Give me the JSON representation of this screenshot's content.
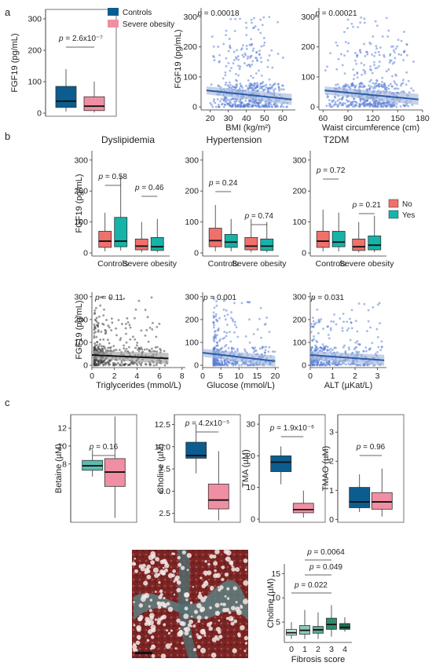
{
  "panel_labels": [
    "a",
    "b",
    "c"
  ],
  "colors": {
    "controls": "#0c5d8f",
    "severe_obesity": "#f08fa3",
    "no": "#f0706b",
    "yes": "#15b3a8",
    "scatter_blue": "#5b7fd6",
    "fit_blue": "#2c5aa8",
    "tg_points": "#444444",
    "betaine_c": "#5cbcb2",
    "fibrosis": [
      "#bfe4dc",
      "#8dc7b8",
      "#5ea895",
      "#2f8a6f",
      "#1f6a52"
    ]
  },
  "chart_data": [
    {
      "id": "a_box",
      "type": "box",
      "ylabel": "FGF19 (pg/mL)",
      "yticks": [
        0,
        100,
        200,
        300
      ],
      "ylim": [
        -10,
        330
      ],
      "legend": [
        "Controls",
        "Severe obesity"
      ],
      "series": [
        {
          "name": "Controls",
          "q1": 18,
          "median": 38,
          "q3": 85,
          "min": 5,
          "max": 140
        },
        {
          "name": "Severe obesity",
          "q1": 8,
          "median": 22,
          "q3": 52,
          "min": 2,
          "max": 100
        }
      ],
      "annotation": "p = 2.6x10⁻⁷"
    },
    {
      "id": "a_bmi",
      "type": "scatter",
      "xlabel": "BMI (kg/m²)",
      "ylabel": "FGF19 (pg/mL)",
      "xticks": [
        20,
        30,
        40,
        50,
        60
      ],
      "yticks": [
        0,
        100,
        200,
        300
      ],
      "xlim": [
        15,
        67
      ],
      "ylim": [
        -10,
        330
      ],
      "fit": {
        "x0": 18,
        "y0": 55,
        "x1": 65,
        "y1": 25
      },
      "annotation": "p = 0.00018"
    },
    {
      "id": "a_waist",
      "type": "scatter",
      "xlabel": "Waist circumference (cm)",
      "xticks": [
        60,
        90,
        120,
        150,
        180
      ],
      "yticks": [
        0,
        100,
        200,
        300
      ],
      "xlim": [
        55,
        180
      ],
      "ylim": [
        -10,
        330
      ],
      "fit": {
        "x0": 62,
        "y0": 55,
        "x1": 175,
        "y1": 25
      },
      "annotation": "p = 0.00021"
    },
    {
      "id": "b_dys",
      "type": "grouped_box",
      "title": "Dyslipidemia",
      "ylabel": "FGF19 (pg/mL)",
      "categories": [
        "Controls",
        "Severe obesity"
      ],
      "yticks": [
        0,
        100,
        200,
        300
      ],
      "ylim": [
        -10,
        330
      ],
      "legend": [
        "No",
        "Yes"
      ],
      "groups": [
        {
          "category": "Controls",
          "no": {
            "q1": 18,
            "median": 38,
            "q3": 70,
            "min": 5,
            "max": 130
          },
          "yes": {
            "q1": 20,
            "median": 38,
            "q3": 115,
            "min": 8,
            "max": 250
          }
        },
        {
          "category": "Severe obesity",
          "no": {
            "q1": 10,
            "median": 22,
            "q3": 45,
            "min": 2,
            "max": 100
          },
          "yes": {
            "q1": 8,
            "median": 20,
            "q3": 50,
            "min": 2,
            "max": 110
          }
        }
      ],
      "annotations": [
        "p = 0.58",
        "p = 0.46"
      ]
    },
    {
      "id": "b_hyp",
      "type": "grouped_box",
      "title": "Hypertension",
      "categories": [
        "Controls",
        "Severe obesity"
      ],
      "yticks": [
        0,
        100,
        200,
        300
      ],
      "ylim": [
        -10,
        330
      ],
      "groups": [
        {
          "category": "Controls",
          "no": {
            "q1": 20,
            "median": 40,
            "q3": 80,
            "min": 5,
            "max": 155
          },
          "yes": {
            "q1": 18,
            "median": 35,
            "q3": 60,
            "min": 5,
            "max": 110
          }
        },
        {
          "category": "Severe obesity",
          "no": {
            "q1": 10,
            "median": 22,
            "q3": 50,
            "min": 2,
            "max": 110
          },
          "yes": {
            "q1": 8,
            "median": 22,
            "q3": 45,
            "min": 2,
            "max": 100
          }
        }
      ],
      "annotations": [
        "p = 0.24",
        "p = 0.74"
      ]
    },
    {
      "id": "b_t2dm",
      "type": "grouped_box",
      "title": "T2DM",
      "categories": [
        "Controls",
        "Severe obesity"
      ],
      "yticks": [
        0,
        100,
        200,
        300
      ],
      "ylim": [
        -10,
        330
      ],
      "groups": [
        {
          "category": "Controls",
          "no": {
            "q1": 18,
            "median": 38,
            "q3": 70,
            "min": 5,
            "max": 140
          },
          "yes": {
            "q1": 20,
            "median": 35,
            "q3": 70,
            "min": 5,
            "max": 130
          }
        },
        {
          "category": "Severe obesity",
          "no": {
            "q1": 8,
            "median": 20,
            "q3": 45,
            "min": 2,
            "max": 100
          },
          "yes": {
            "q1": 10,
            "median": 25,
            "q3": 55,
            "min": 2,
            "max": 120
          }
        }
      ],
      "annotations": [
        "p = 0.72",
        "p = 0.21"
      ]
    },
    {
      "id": "b_tg",
      "type": "scatter",
      "xlabel": "Triglycerides (mmol/L)",
      "ylabel": "FGF19 (pg/mL)",
      "xticks": [
        0,
        2,
        4,
        6,
        8
      ],
      "yticks": [
        0,
        100,
        200,
        300
      ],
      "xlim": [
        0,
        8.3
      ],
      "ylim": [
        -10,
        320
      ],
      "fit": {
        "x0": 0,
        "y0": 45,
        "x1": 6.8,
        "y1": 30
      },
      "annotation": "p = 0.11"
    },
    {
      "id": "b_glu",
      "type": "scatter",
      "xlabel": "Glucose (mmol/L)",
      "xticks": [
        0,
        5,
        10,
        15,
        20
      ],
      "yticks": [
        0,
        100,
        200,
        300
      ],
      "xlim": [
        0,
        21
      ],
      "ylim": [
        -10,
        320
      ],
      "fit": {
        "x0": 0,
        "y0": 55,
        "x1": 20,
        "y1": 18
      },
      "annotation": "p = 0.001"
    },
    {
      "id": "b_alt",
      "type": "scatter",
      "xlabel": "ALT (µKat/L)",
      "xticks": [
        0,
        1,
        2,
        3
      ],
      "yticks": [
        0,
        100,
        200,
        300
      ],
      "xlim": [
        0,
        3.4
      ],
      "ylim": [
        -10,
        320
      ],
      "fit": {
        "x0": 0,
        "y0": 45,
        "x1": 3.3,
        "y1": 22
      },
      "annotation": "p = 0.031"
    },
    {
      "id": "c_betaine",
      "type": "box",
      "ylabel": "Betaine (µM)",
      "yticks": [
        8,
        10,
        12
      ],
      "ylim": [
        1.5,
        13.5
      ],
      "series": [
        {
          "name": "Controls",
          "q1": 7.3,
          "median": 7.8,
          "q3": 8.4,
          "min": 6.6,
          "max": 9.6
        },
        {
          "name": "Severe obesity",
          "q1": 5.5,
          "median": 7.1,
          "q3": 8.6,
          "min": 2.0,
          "max": 13.3
        }
      ],
      "annotation": "p = 0.16"
    },
    {
      "id": "c_choline",
      "type": "box",
      "ylabel": "Choline (µM)",
      "yticks": [
        2.5,
        5.0,
        7.5,
        10.0,
        12.5
      ],
      "ylim": [
        1.5,
        13.6
      ],
      "series": [
        {
          "name": "Controls",
          "q1": 8.7,
          "median": 9.0,
          "q3": 10.5,
          "min": 7.0,
          "max": 12.5
        },
        {
          "name": "Severe obesity",
          "q1": 3.0,
          "median": 4.0,
          "q3": 5.8,
          "min": 1.7,
          "max": 9.5
        }
      ],
      "annotation": "p = 4.2x10⁻⁵"
    },
    {
      "id": "c_tma",
      "type": "box",
      "ylabel": "TMA (µM)",
      "yticks": [
        0,
        10,
        20,
        30
      ],
      "ylim": [
        -1,
        33
      ],
      "series": [
        {
          "name": "Controls",
          "q1": 15,
          "median": 18,
          "q3": 20,
          "min": 11,
          "max": 23
        },
        {
          "name": "Severe obesity",
          "q1": 2,
          "median": 3,
          "q3": 5,
          "min": 0.5,
          "max": 9
        }
      ],
      "annotation": "p = 1.9x10⁻⁶"
    },
    {
      "id": "c_tmao",
      "type": "box",
      "ylabel": "TMAO (µM)",
      "yticks": [
        0,
        1,
        2,
        3
      ],
      "ylim": [
        -0.1,
        3.6
      ],
      "series": [
        {
          "name": "Controls",
          "q1": 0.4,
          "median": 0.6,
          "q3": 1.1,
          "min": 0.25,
          "max": 1.55
        },
        {
          "name": "Severe obesity",
          "q1": 0.35,
          "median": 0.6,
          "q3": 0.92,
          "min": 0.1,
          "max": 1.75
        }
      ],
      "annotation": "p = 0.96"
    },
    {
      "id": "c_fibrosis",
      "type": "box",
      "ylabel": "Choline (µM)",
      "xlabel": "Fibrosis score",
      "categories": [
        "0",
        "1",
        "2",
        "3",
        "4"
      ],
      "yticks": [
        5,
        10,
        15
      ],
      "ylim": [
        0.8,
        17
      ],
      "series": [
        {
          "name": "0",
          "q1": 2.3,
          "median": 2.8,
          "q3": 3.5,
          "min": 1.5,
          "max": 5.0
        },
        {
          "name": "1",
          "q1": 2.5,
          "median": 3.3,
          "q3": 4.3,
          "min": 1.5,
          "max": 7.5
        },
        {
          "name": "2",
          "q1": 2.7,
          "median": 3.4,
          "q3": 4.1,
          "min": 1.5,
          "max": 7.0
        },
        {
          "name": "3",
          "q1": 3.5,
          "median": 4.5,
          "q3": 5.8,
          "min": 2.0,
          "max": 8.5
        },
        {
          "name": "4",
          "q1": 3.5,
          "median": 3.9,
          "q3": 4.7,
          "min": 3.0,
          "max": 6.0
        }
      ],
      "annotations": [
        "p = 0.0064",
        "p = 0.049",
        "p = 0.022"
      ]
    }
  ]
}
